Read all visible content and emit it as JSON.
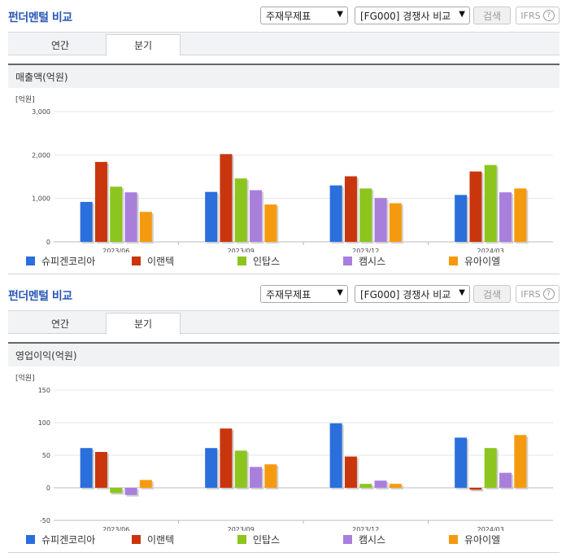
{
  "panels": [
    {
      "title": "펀더멘털 비교",
      "select1": "주재무제표",
      "select2": "[FG000] 경쟁사 비교",
      "search_label": "검색",
      "ifrs_label": "IFRS",
      "tabs": [
        "연간",
        "분기"
      ],
      "active_tab": "분기",
      "metric": "매출액(억원)"
    },
    {
      "title": "펀더멘털 비교",
      "select1": "주재무제표",
      "select2": "[FG000] 경쟁사 비교",
      "search_label": "검색",
      "ifrs_label": "IFRS",
      "tabs": [
        "연간",
        "분기"
      ],
      "active_tab": "분기",
      "metric": "영업이익(억원)"
    }
  ],
  "chart_data": [
    {
      "type": "bar",
      "unit_label": "[억원]",
      "categories": [
        "2023/06",
        "2023/09",
        "2023/12",
        "2024/03"
      ],
      "ylim": [
        0,
        3000
      ],
      "yticks": [
        0,
        1000,
        2000,
        3000
      ],
      "ytick_labels": [
        "0",
        "1,000",
        "2,000",
        "3,000"
      ],
      "grid": true,
      "legend_position": "bottom",
      "series": [
        {
          "name": "슈피겐코리아",
          "color": "#2a6fdc",
          "values": [
            920,
            1150,
            1300,
            1080
          ]
        },
        {
          "name": "이랜텍",
          "color": "#c9360e",
          "values": [
            1840,
            2020,
            1510,
            1620
          ]
        },
        {
          "name": "인탑스",
          "color": "#8cc51e",
          "values": [
            1270,
            1460,
            1230,
            1770
          ]
        },
        {
          "name": "캠시스",
          "color": "#a97fdc",
          "values": [
            1140,
            1190,
            1010,
            1140
          ]
        },
        {
          "name": "유아이엘",
          "color": "#f59a0f",
          "values": [
            690,
            860,
            890,
            1230
          ]
        }
      ]
    },
    {
      "type": "bar",
      "unit_label": "[억원]",
      "categories": [
        "2023/06",
        "2023/09",
        "2023/12",
        "2024/03"
      ],
      "ylim": [
        -50,
        150
      ],
      "yticks": [
        -50,
        0,
        50,
        100,
        150
      ],
      "ytick_labels": [
        "-50",
        "0",
        "50",
        "100",
        "150"
      ],
      "grid": true,
      "legend_position": "bottom",
      "series": [
        {
          "name": "슈피겐코리아",
          "color": "#2a6fdc",
          "values": [
            61,
            61,
            99,
            77
          ]
        },
        {
          "name": "이랜텍",
          "color": "#c9360e",
          "values": [
            55,
            91,
            48,
            -3
          ]
        },
        {
          "name": "인탑스",
          "color": "#8cc51e",
          "values": [
            -8,
            57,
            6,
            61
          ]
        },
        {
          "name": "캠시스",
          "color": "#a97fdc",
          "values": [
            -11,
            32,
            11,
            23
          ]
        },
        {
          "name": "유아이엘",
          "color": "#f59a0f",
          "values": [
            12,
            36,
            6,
            81
          ]
        }
      ]
    }
  ]
}
